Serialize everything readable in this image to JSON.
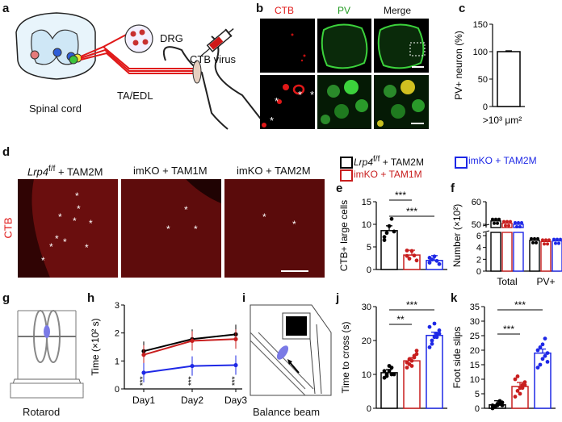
{
  "panel_labels": {
    "a": "a",
    "b": "b",
    "c": "c",
    "d": "d",
    "e": "e",
    "f": "f",
    "g": "g",
    "h": "h",
    "i": "i",
    "j": "j",
    "k": "k"
  },
  "panel_a": {
    "drg": "DRG",
    "ta_edl": "TA/EDL",
    "ctb_virus": "CTB virus",
    "spinal_cord": "Spinal cord"
  },
  "panel_b": {
    "ctb": "CTB",
    "pv": "PV",
    "merge": "Merge",
    "star": "*"
  },
  "panel_d": {
    "col1_prefix": "Lrp4",
    "col1_sup": "f/f",
    "col1_suffix": " + TAM2M",
    "col2": "imKO + TAM1M",
    "col3": "imKO + TAM2M",
    "row_label": "CTB"
  },
  "legend": {
    "item1_prefix": "Lrp4",
    "item1_sup": "f/f",
    "item1_suffix": " + TAM2M",
    "item2": "imKO + TAM1M",
    "item3": "imKO + TAM2M"
  },
  "panel_g": {
    "caption": "Rotarod"
  },
  "panel_i": {
    "caption": "Balance beam"
  },
  "colors": {
    "control": "#000000",
    "tam1m": "#c81e1e",
    "tam2m": "#1e28e6",
    "ctb_red": "#e01818",
    "pv_green": "#3cd23c"
  },
  "chart_data": [
    {
      "id": "c",
      "type": "bar",
      "ylabel": "PV+ neuron (%)",
      "categories": [
        ">10³ μm²"
      ],
      "values": [
        100
      ],
      "ylim": [
        0,
        150
      ],
      "yticks": [
        0,
        50,
        100,
        150
      ]
    },
    {
      "id": "e",
      "type": "bar",
      "ylabel": "CTB+ large cells",
      "categories": [
        "Lrp4f/f + TAM2M",
        "imKO + TAM1M",
        "imKO + TAM2M"
      ],
      "values": [
        8.6,
        3.2,
        2.0
      ],
      "ylim": [
        0,
        15
      ],
      "yticks": [
        0,
        5,
        10,
        15
      ],
      "significance": [
        "***",
        "***"
      ],
      "points": [
        [
          7.2,
          8.1,
          9.6,
          11.2,
          8.4,
          6.5
        ],
        [
          3.0,
          2.4,
          4.1,
          3.1,
          2.0,
          4.2
        ],
        [
          1.5,
          2.2,
          2.9,
          1.9,
          1.2,
          2.6
        ]
      ]
    },
    {
      "id": "f",
      "type": "bar",
      "ylabel": "Number (×10²)",
      "categories": [
        "Total",
        "PV+"
      ],
      "series": [
        {
          "name": "Lrp4f/f + TAM2M",
          "values": [
            51.5,
            5.2
          ]
        },
        {
          "name": "imKO + TAM1M",
          "values": [
            50.5,
            5.0
          ]
        },
        {
          "name": "imKO + TAM2M",
          "values": [
            50.0,
            5.1
          ]
        }
      ],
      "yticks": [
        0,
        2,
        4,
        6,
        50,
        60
      ],
      "axis_break": true
    },
    {
      "id": "h",
      "type": "line",
      "ylabel": "Time (×10² s)",
      "categories": [
        "Day1",
        "Day2",
        "Day3"
      ],
      "series": [
        {
          "name": "Lrp4f/f + TAM2M",
          "values": [
            1.35,
            1.78,
            1.95
          ]
        },
        {
          "name": "imKO + TAM1M",
          "values": [
            1.22,
            1.72,
            1.78
          ]
        },
        {
          "name": "imKO + TAM2M",
          "values": [
            0.58,
            0.82,
            0.85
          ]
        }
      ],
      "ylim": [
        0,
        3
      ],
      "yticks": [
        0,
        1,
        2,
        3
      ],
      "significance": [
        "***",
        "***",
        "***"
      ]
    },
    {
      "id": "j",
      "type": "bar",
      "ylabel": "Time to cross (s)",
      "categories": [
        "Lrp4f/f + TAM2M",
        "imKO + TAM1M",
        "imKO + TAM2M"
      ],
      "values": [
        10.5,
        14.0,
        21.5
      ],
      "ylim": [
        0,
        30
      ],
      "yticks": [
        0,
        10,
        20,
        30
      ],
      "significance": [
        "**",
        "***"
      ],
      "points": [
        [
          9,
          10,
          11,
          12,
          10,
          11,
          9.5,
          12.5,
          10
        ],
        [
          12,
          13,
          14,
          15,
          16,
          13.5,
          14.5,
          12.5,
          15.5,
          17
        ],
        [
          18,
          20,
          21,
          22,
          23,
          24,
          19,
          25,
          21,
          22
        ]
      ]
    },
    {
      "id": "k",
      "type": "bar",
      "ylabel": "Foot side slips",
      "categories": [
        "Lrp4f/f + TAM2M",
        "imKO + TAM1M",
        "imKO + TAM2M"
      ],
      "values": [
        1.2,
        7.5,
        19.0
      ],
      "ylim": [
        0,
        35
      ],
      "yticks": [
        0,
        5,
        10,
        15,
        20,
        25,
        30,
        35
      ],
      "significance": [
        "***",
        "***"
      ],
      "points": [
        [
          0,
          0.5,
          1,
          1.5,
          2,
          1,
          0.5,
          1.5,
          2.5,
          1
        ],
        [
          4,
          6,
          7,
          8,
          9,
          10,
          11,
          5,
          7,
          8
        ],
        [
          14,
          15,
          17,
          18,
          19,
          20,
          21,
          22,
          24,
          16
        ]
      ]
    }
  ]
}
